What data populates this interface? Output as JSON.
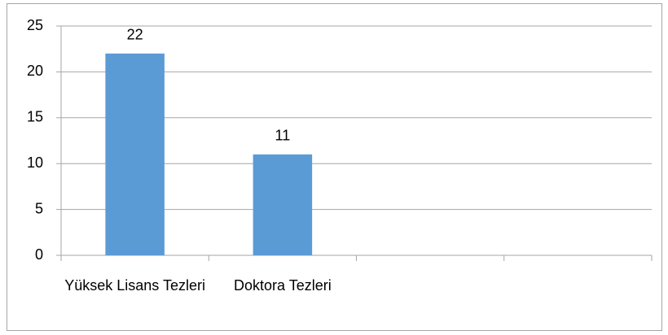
{
  "chart_data": {
    "type": "bar",
    "categories": [
      "Yüksek Lisans Tezleri",
      "Doktora Tezleri",
      null,
      null
    ],
    "values": [
      22,
      11,
      null,
      null
    ],
    "color": "#5b9bd5",
    "ylim": [
      0,
      25
    ],
    "yticks": [
      0,
      5,
      10,
      15,
      20,
      25
    ],
    "grid": true
  }
}
